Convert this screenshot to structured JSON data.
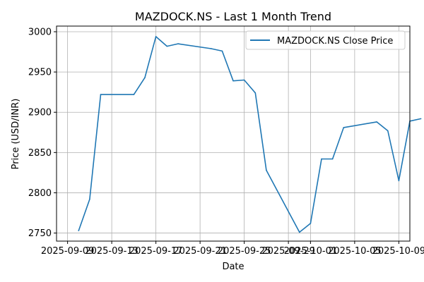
{
  "chart_data": {
    "type": "line",
    "title": "MAZDOCK.NS - Last 1 Month Trend",
    "xlabel": "Date",
    "ylabel": "Price (USD/INR)",
    "x_ticks": [
      "2025-09-09",
      "2025-09-13",
      "2025-09-17",
      "2025-09-21",
      "2025-09-25",
      "2025-09-29",
      "2025-10-01",
      "2025-10-05",
      "2025-10-09"
    ],
    "y_ticks": [
      2750,
      2800,
      2850,
      2900,
      2950,
      3000
    ],
    "xlim": [
      "2025-09-08",
      "2025-10-10"
    ],
    "ylim": [
      2740,
      3007
    ],
    "grid": true,
    "legend_position": "upper-right",
    "colors": {
      "series": "#1f77b4"
    },
    "series": [
      {
        "name": "MAZDOCK.NS Close Price",
        "points": [
          {
            "x": "2025-09-10",
            "y": 2753
          },
          {
            "x": "2025-09-11",
            "y": 2792
          },
          {
            "x": "2025-09-12",
            "y": 2922
          },
          {
            "x": "2025-09-15",
            "y": 2922
          },
          {
            "x": "2025-09-16",
            "y": 2943
          },
          {
            "x": "2025-09-17",
            "y": 2994
          },
          {
            "x": "2025-09-18",
            "y": 2982
          },
          {
            "x": "2025-09-19",
            "y": 2985
          },
          {
            "x": "2025-09-22",
            "y": 2979
          },
          {
            "x": "2025-09-23",
            "y": 2976
          },
          {
            "x": "2025-09-24",
            "y": 2939
          },
          {
            "x": "2025-09-25",
            "y": 2940
          },
          {
            "x": "2025-09-26",
            "y": 2924
          },
          {
            "x": "2025-09-27",
            "y": 2828
          },
          {
            "x": "2025-09-30",
            "y": 2751
          },
          {
            "x": "2025-10-01",
            "y": 2762
          },
          {
            "x": "2025-10-02",
            "y": 2842
          },
          {
            "x": "2025-10-03",
            "y": 2842
          },
          {
            "x": "2025-10-04",
            "y": 2881
          },
          {
            "x": "2025-10-07",
            "y": 2888
          },
          {
            "x": "2025-10-08",
            "y": 2877
          },
          {
            "x": "2025-10-09",
            "y": 2815
          },
          {
            "x": "2025-10-10",
            "y": 2889
          },
          {
            "x": "2025-10-11",
            "y": 2892
          }
        ]
      }
    ]
  }
}
